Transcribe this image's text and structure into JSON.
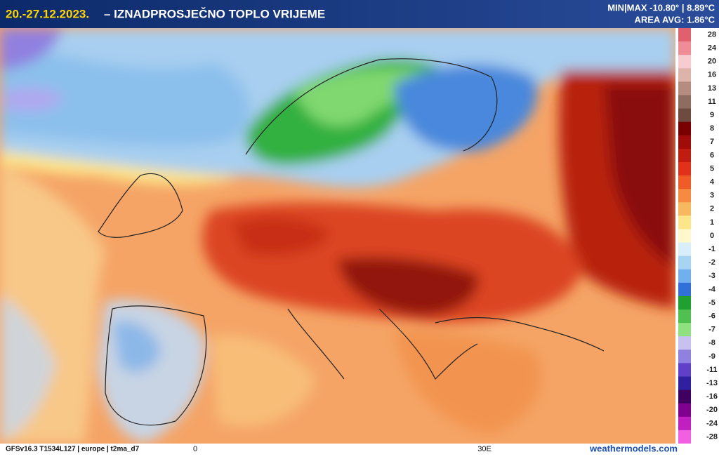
{
  "header": {
    "period": "20.-27.12.2023.",
    "title": "– IZNADPROSJEČNO TOPLO VRIJEME",
    "minmax": "MIN|MAX -10.80° | 8.89°C",
    "area_avg": "AREA AVG: 1.86°C"
  },
  "colorbar": [
    {
      "label": 28,
      "color": "#e0606e"
    },
    {
      "label": 24,
      "color": "#f08c98"
    },
    {
      "label": 20,
      "color": "#f6ccd0"
    },
    {
      "label": 16,
      "color": "#dcb4aa"
    },
    {
      "label": 13,
      "color": "#b48c80"
    },
    {
      "label": 11,
      "color": "#8e6c60"
    },
    {
      "label": 9,
      "color": "#6e4a40"
    },
    {
      "label": 8,
      "color": "#7a0000"
    },
    {
      "label": 7,
      "color": "#a00c0a"
    },
    {
      "label": 6,
      "color": "#c01c10"
    },
    {
      "label": 5,
      "color": "#e0321a"
    },
    {
      "label": 4,
      "color": "#f05c28"
    },
    {
      "label": 3,
      "color": "#f58a40"
    },
    {
      "label": 2,
      "color": "#f8b860"
    },
    {
      "label": 1,
      "color": "#fde68a"
    },
    {
      "label": 0,
      "color": "#fff8cc"
    },
    {
      "label": -1,
      "color": "#d8eefa"
    },
    {
      "label": -2,
      "color": "#a8d4f4"
    },
    {
      "label": -3,
      "color": "#70b0ec"
    },
    {
      "label": -4,
      "color": "#3070d8"
    },
    {
      "label": -5,
      "color": "#20a030"
    },
    {
      "label": -6,
      "color": "#50c050"
    },
    {
      "label": -7,
      "color": "#90e080"
    },
    {
      "label": -8,
      "color": "#c8c0f0"
    },
    {
      "label": -9,
      "color": "#9080e0"
    },
    {
      "label": -11,
      "color": "#6040c8"
    },
    {
      "label": -13,
      "color": "#3020a0"
    },
    {
      "label": -16,
      "color": "#400060"
    },
    {
      "label": -20,
      "color": "#800090"
    },
    {
      "label": -24,
      "color": "#c020c0"
    },
    {
      "label": -28,
      "color": "#f060e0"
    }
  ],
  "footer": {
    "model": "GFSv16.3 T1534L127 | europe | t2ma_d7",
    "lon_labels": [
      "0",
      "30E"
    ],
    "source": "weathermodels.com"
  }
}
